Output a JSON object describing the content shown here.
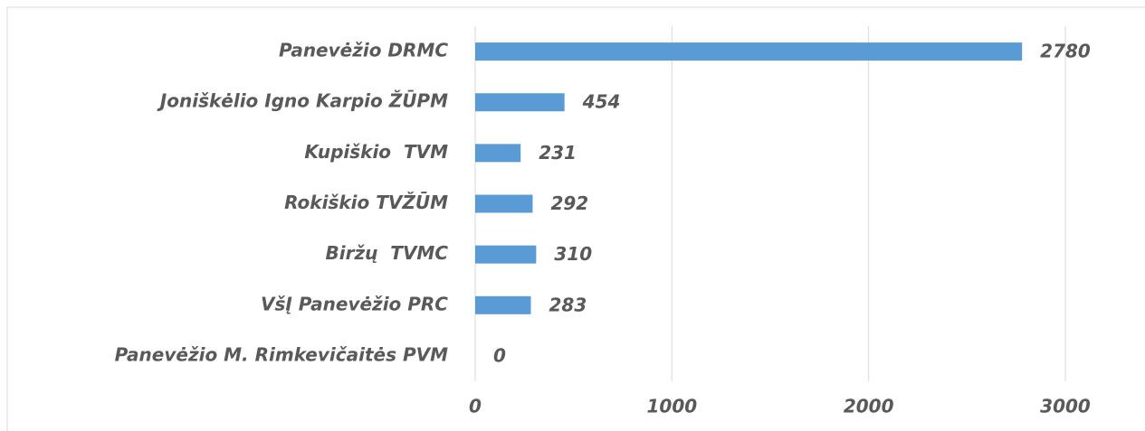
{
  "chart_data": {
    "type": "barh",
    "categories": [
      "Panevėžio DRMC",
      "Joniškėlio Igno Karpio ŽŪPM",
      "Kupiškio  TVM",
      "Rokiškio TVŽŪM",
      "Biržų  TVMC",
      "VšĮ Panevėžio PRC",
      "Panevėžio M. Rimkevičaitės PVM"
    ],
    "values": [
      2780,
      454,
      231,
      292,
      310,
      283,
      0
    ],
    "color": "#5b9bd5",
    "xlim": [
      0,
      3000
    ],
    "xticks": [
      0,
      1000,
      2000,
      3000
    ],
    "grid": true
  }
}
